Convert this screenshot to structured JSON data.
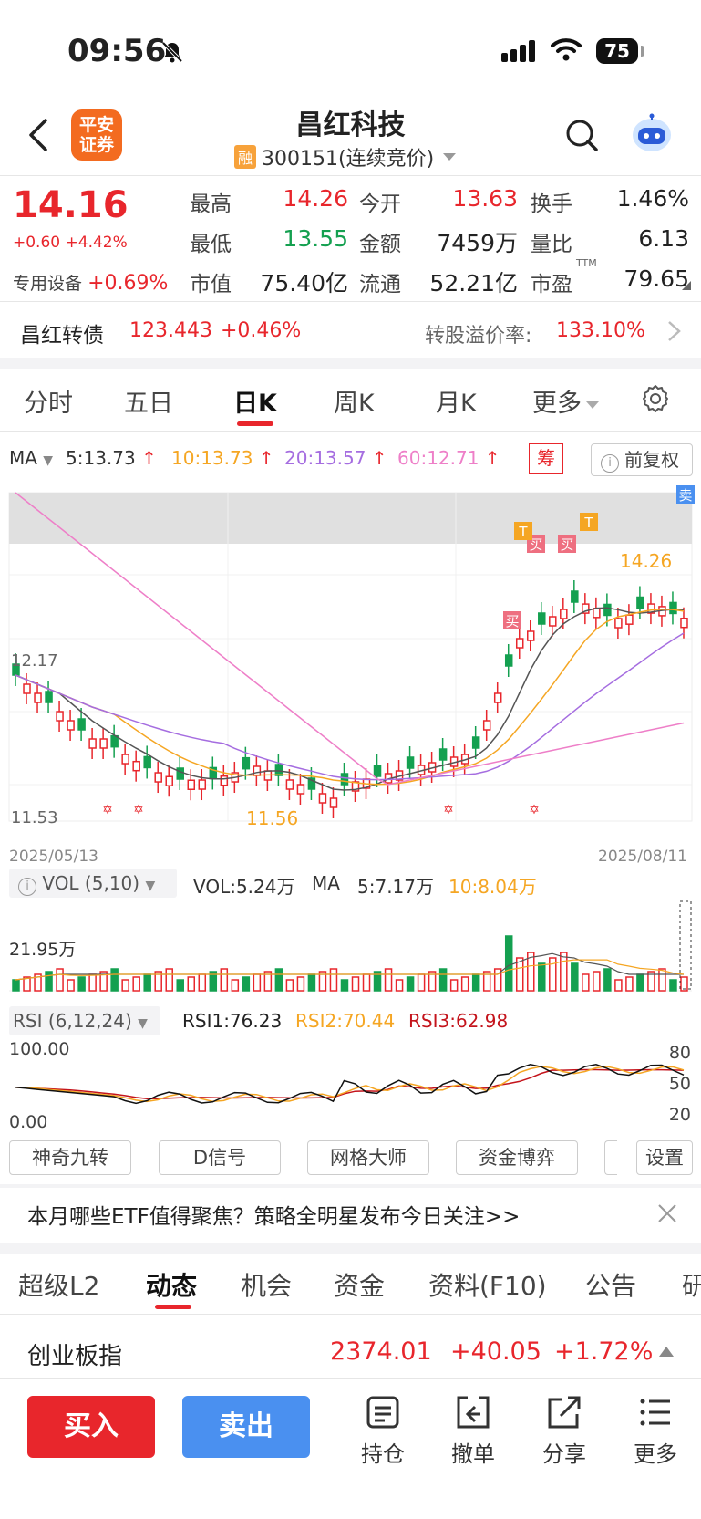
{
  "status": {
    "time": "09:56",
    "battery": "75"
  },
  "header": {
    "title": "昌红科技",
    "rong": "融",
    "code": "300151(连续竞价)",
    "logo_line1": "平安",
    "logo_line2": "证券"
  },
  "quote": {
    "price": "14.16",
    "change": "+0.60",
    "change_pct": "+4.42%",
    "sector_name": "专用设备",
    "sector_chg": "+0.69%",
    "rows": [
      [
        {
          "k": "最高",
          "v": "14.26",
          "c": "red"
        },
        {
          "k": "今开",
          "v": "13.63",
          "c": "red"
        },
        {
          "k": "换手",
          "v": "1.46%",
          "c": ""
        }
      ],
      [
        {
          "k": "最低",
          "v": "13.55",
          "c": "green"
        },
        {
          "k": "金额",
          "v": "7459万",
          "c": ""
        },
        {
          "k": "量比",
          "v": "6.13",
          "c": ""
        }
      ],
      [
        {
          "k": "市值",
          "v": "75.40亿",
          "c": ""
        },
        {
          "k": "流通",
          "v": "52.21亿",
          "c": ""
        },
        {
          "k": "市盈",
          "v": "79.65",
          "c": ""
        }
      ]
    ],
    "ttm": "TTM"
  },
  "bond": {
    "name": "昌红转债",
    "value": "123.443",
    "change": "+0.46%",
    "premium_label": "转股溢价率:",
    "premium_value": "133.10%"
  },
  "ktabs": [
    {
      "label": "分时"
    },
    {
      "label": "五日"
    },
    {
      "label": "日K"
    },
    {
      "label": "周K"
    },
    {
      "label": "月K"
    },
    {
      "label": "更多"
    }
  ],
  "ma": {
    "label": "MA",
    "ma5": "5:13.73",
    "ma10": "10:13.73",
    "ma20": "20:13.57",
    "ma60": "60:12.71",
    "chou": "筹",
    "fuquan": "前复权"
  },
  "chart_labels": {
    "high_mark": "14.26",
    "low_mark": "11.56",
    "left_top": "12.17",
    "left_bottom": "11.53",
    "date_start": "2025/05/13",
    "date_end": "2025/08/11",
    "buy": "买",
    "sell": "卖",
    "t": "T"
  },
  "vol": {
    "label": "VOL (5,10)",
    "vol": "VOL:5.24万",
    "ma": "MA",
    "ma5": "5:7.17万",
    "ma10": "10:8.04万",
    "max": "21.95万"
  },
  "rsi": {
    "label": "RSI (6,12,24)",
    "rsi1": "RSI1:76.23",
    "rsi2": "RSI2:70.44",
    "rsi3": "RSI3:62.98",
    "top": "100.00",
    "bottom": "0.00",
    "r80": "80",
    "r50": "50",
    "r20": "20"
  },
  "tools": [
    {
      "label": "神奇九转"
    },
    {
      "label": "D信号"
    },
    {
      "label": "网格大师"
    },
    {
      "label": "资金博弈"
    },
    {
      "label": "设置"
    }
  ],
  "banner": {
    "text": "本月哪些ETF值得聚焦？策略全明星发布今日关注>>"
  },
  "btabs": [
    {
      "label": "超级L2"
    },
    {
      "label": "动态"
    },
    {
      "label": "机会"
    },
    {
      "label": "资金"
    },
    {
      "label": "资料(F10)"
    },
    {
      "label": "公告"
    },
    {
      "label": "研"
    }
  ],
  "index": {
    "name": "创业板指",
    "value": "2374.01",
    "change": "+40.05",
    "pct": "+1.72%"
  },
  "actions": {
    "buy": "买入",
    "sell": "卖出",
    "hold": "持仓",
    "cancel": "撤单",
    "share": "分享",
    "more": "更多"
  },
  "colors": {
    "red": "#e8262c",
    "green": "#14a050",
    "orange": "#f5a623",
    "purple": "#a56de0",
    "pink": "#ee7fc8",
    "blue": "#4a90f0"
  }
}
